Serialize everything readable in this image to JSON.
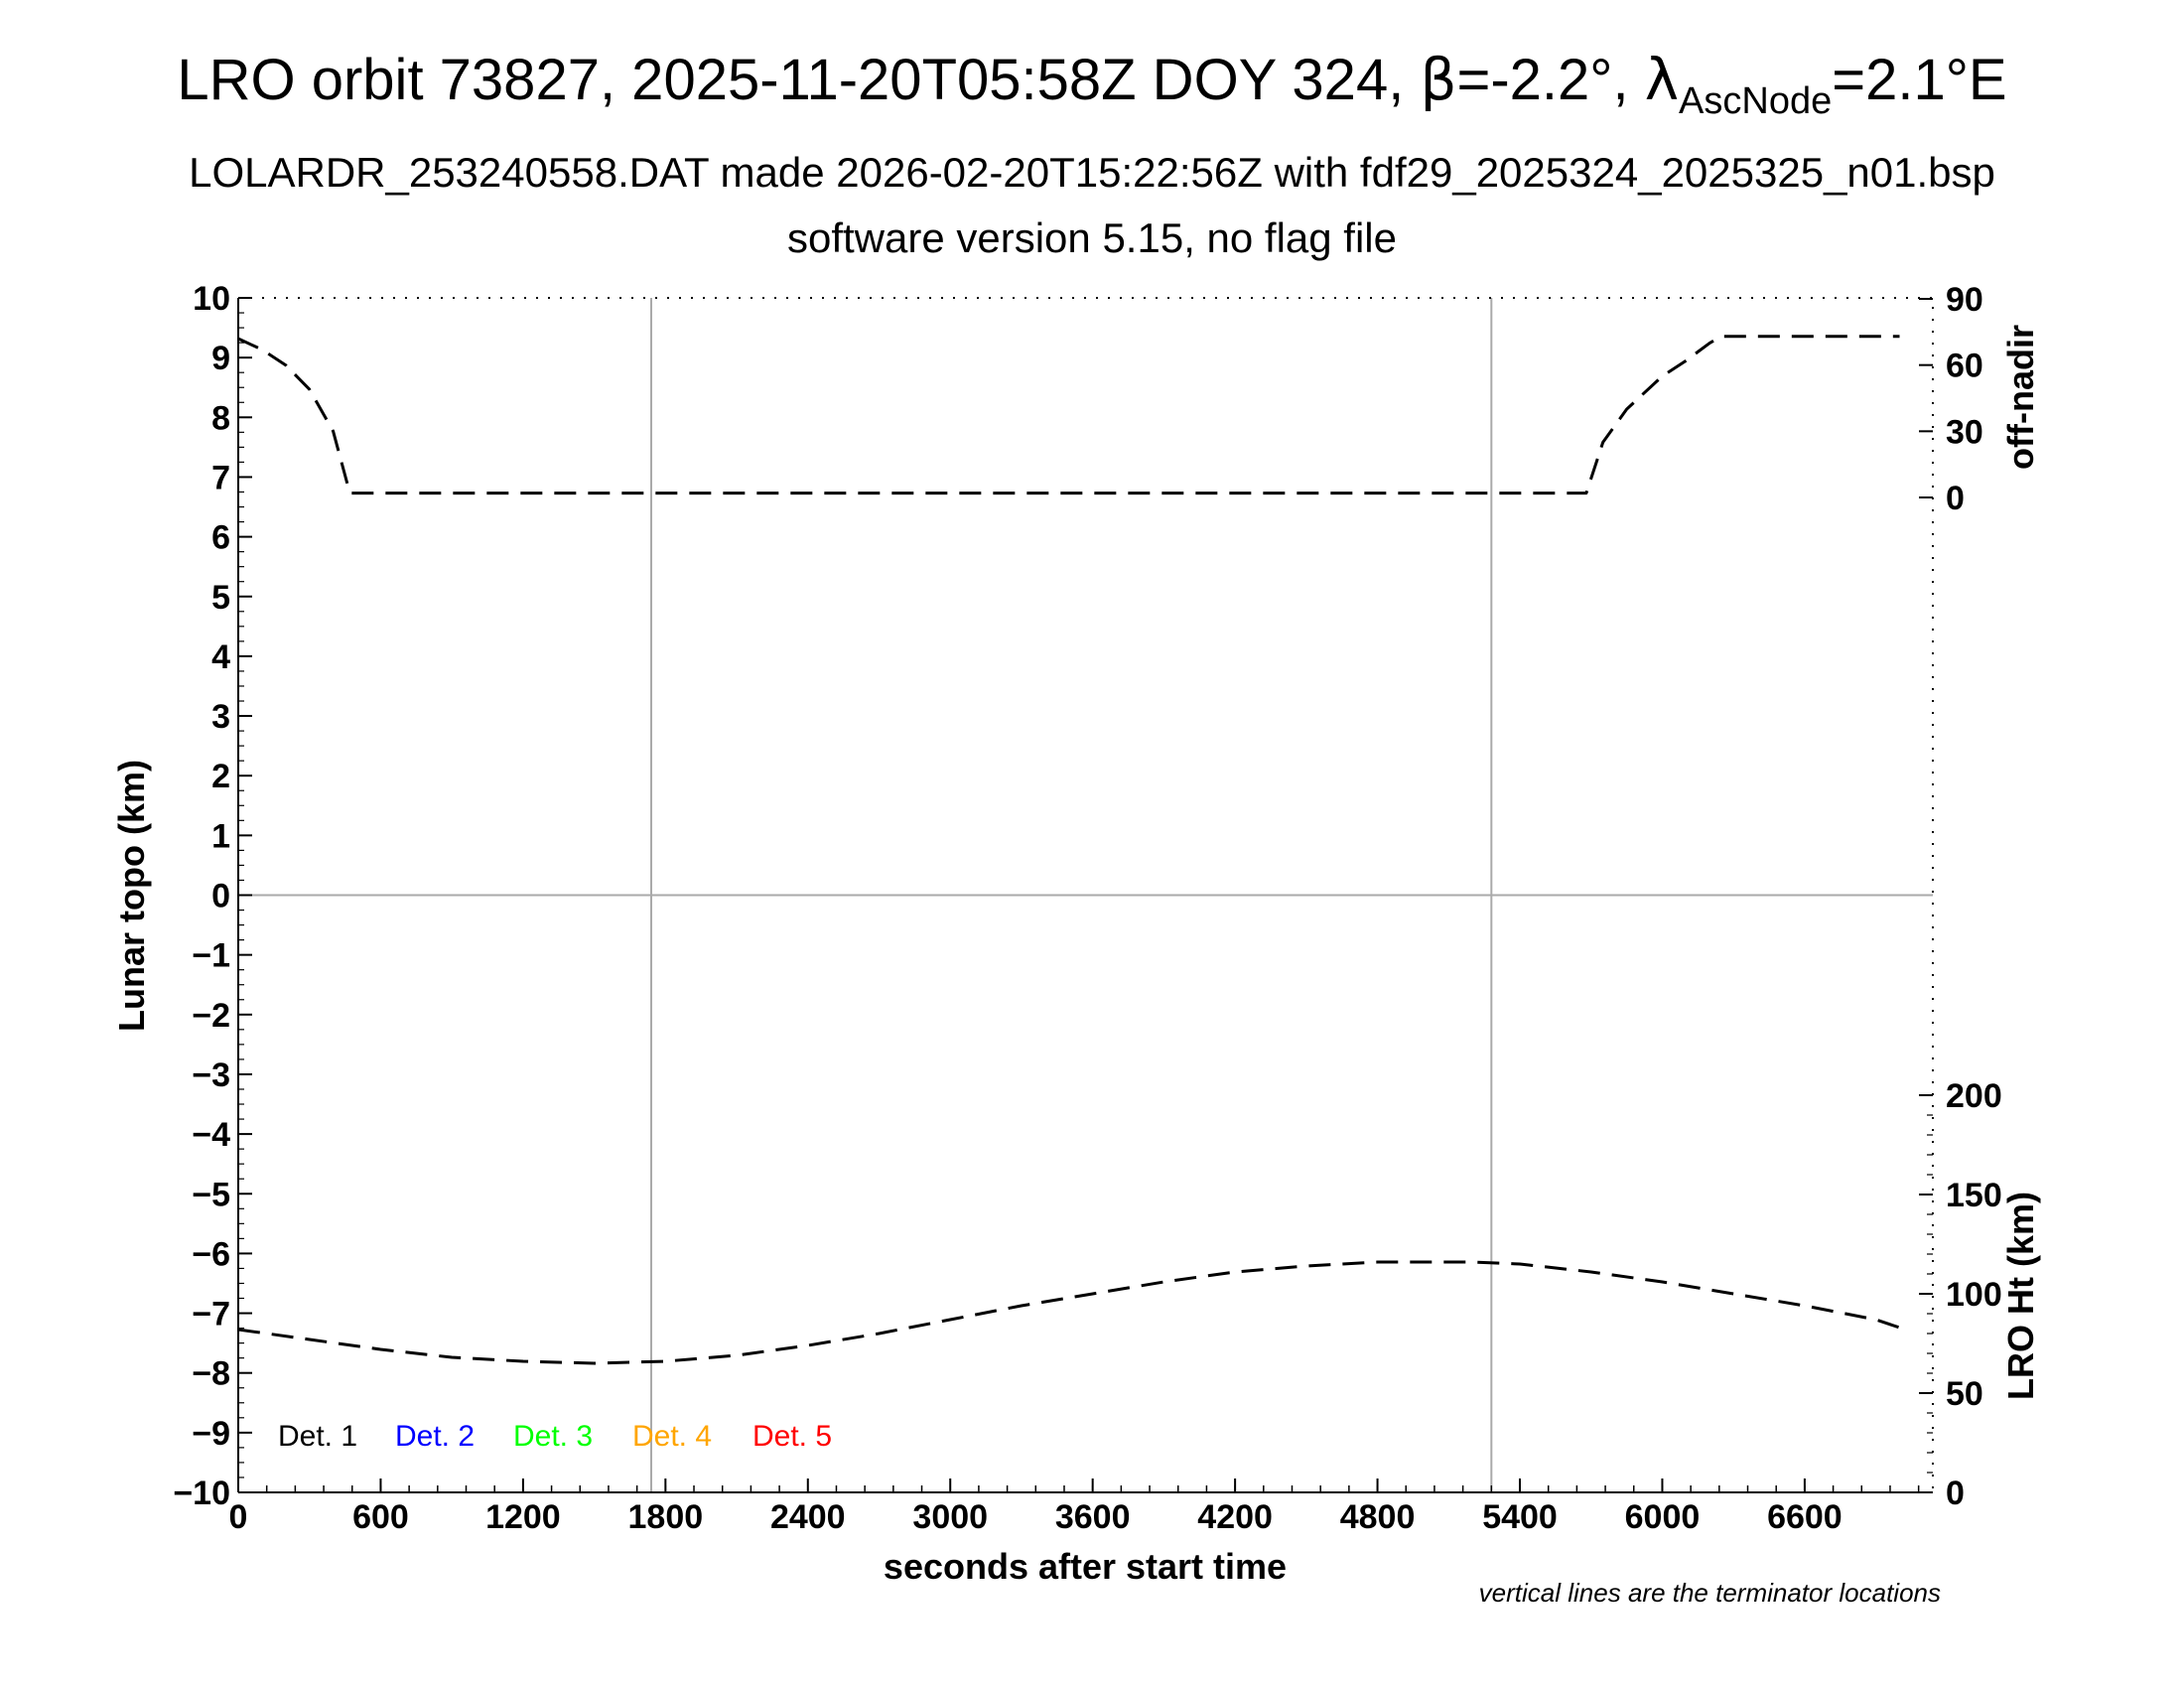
{
  "chart_data": {
    "type": "line",
    "title": {
      "prefix": "LRO orbit 73827, 2025-11-20T05:58Z DOY 324, ",
      "beta_symbol": "β",
      "beta_value": "=-2.2°, ",
      "lambda_symbol": "λ",
      "lambda_subscript": "AscNode",
      "lambda_value": "=2.1°E"
    },
    "subtitle_1": "LOLARDR_253240558.DAT made 2026-02-20T15:22:56Z with fdf29_2025324_2025325_n01.bsp",
    "subtitle_2": "software version 5.15, no flag file",
    "xlabel": "seconds after start time",
    "ylabel_left": "Lunar topo (km)",
    "ylabel_right_top": "off-nadir",
    "ylabel_right_bottom": "LRO Ht (km)",
    "note": "vertical lines are the terminator locations",
    "xlim": [
      0,
      7140
    ],
    "ylim_left": [
      -10,
      10
    ],
    "x_ticks": [
      "0",
      "600",
      "1200",
      "1800",
      "2400",
      "3000",
      "3600",
      "4200",
      "4800",
      "5400",
      "6000",
      "6600"
    ],
    "y_ticks_left": [
      "10",
      "9",
      "8",
      "7",
      "6",
      "5",
      "4",
      "3",
      "2",
      "1",
      "0",
      "−1",
      "−2",
      "−3",
      "−4",
      "−5",
      "−6",
      "−7",
      "−8",
      "−9",
      "−10"
    ],
    "off_nadir_ticks": [
      "90",
      "60",
      "30",
      "0"
    ],
    "lro_ht_ticks": [
      "200",
      "150",
      "100",
      "50",
      "0"
    ],
    "terminator_x": [
      1740,
      5280
    ],
    "grid": "terminator lines and zero line only",
    "legend": {
      "placement": "bottom-left",
      "entries": [
        {
          "label": "Det. 1",
          "color": "#000000"
        },
        {
          "label": "Det. 2",
          "color": "#0000ff"
        },
        {
          "label": "Det. 3",
          "color": "#00ff00"
        },
        {
          "label": "Det. 4",
          "color": "#ffa500"
        },
        {
          "label": "Det. 5",
          "color": "#ff0000"
        }
      ]
    },
    "series": [
      {
        "axis": "off-nadir",
        "style": "dashed",
        "x": [
          0,
          100,
          200,
          300,
          400,
          470,
          500,
          650,
          1000,
          2000,
          3000,
          4000,
          5000,
          5500,
          5650,
          5680,
          5750,
          5850,
          6000,
          6100,
          6200,
          6250,
          6300,
          7000
        ],
        "y": [
          72,
          67,
          60,
          49,
          30,
          2,
          2,
          2,
          2,
          2,
          2,
          2,
          2,
          2,
          2,
          2,
          25,
          40,
          55,
          62,
          70,
          73,
          73,
          73
        ]
      },
      {
        "axis": "LRO Ht (km)",
        "style": "dashed",
        "x": [
          0,
          300,
          600,
          900,
          1200,
          1500,
          1800,
          2100,
          2400,
          2700,
          3000,
          3300,
          3600,
          3900,
          4200,
          4500,
          4800,
          5000,
          5200,
          5400,
          5700,
          6000,
          6300,
          6600,
          6900,
          7000
        ],
        "y": [
          82,
          77,
          72,
          68,
          66,
          65,
          66,
          69,
          74,
          80,
          87,
          94,
          100,
          106,
          111,
          114,
          116,
          116,
          116,
          115,
          111,
          106,
          100,
          94,
          87,
          83
        ]
      }
    ]
  }
}
